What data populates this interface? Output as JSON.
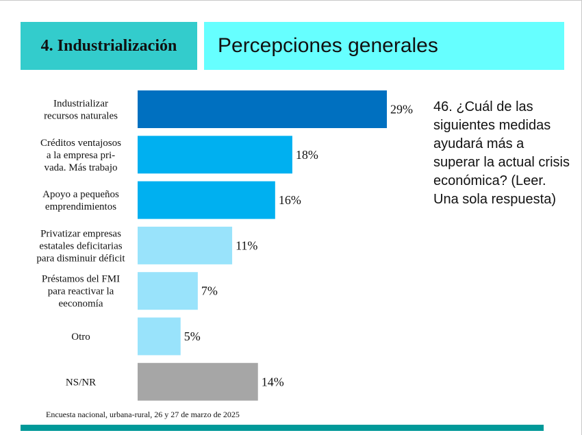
{
  "header": {
    "section": "4. Industrialización",
    "title": "Percepciones generales"
  },
  "question": "46. ¿Cuál de las siguientes medidas ayudará más a superar la actual crisis económica? (Leer. Una sola respuesta)",
  "source": "Encuesta nacional, urbana-rural, 26 y 27 de marzo de 2025",
  "colors": {
    "header_left": "#33cccc",
    "header_right": "#66ffff",
    "footer": "#009999"
  },
  "chart_data": {
    "type": "bar",
    "orientation": "horizontal",
    "categories": [
      [
        "Industrializar",
        "recursos naturales"
      ],
      [
        "Créditos ventajosos",
        "a la empresa pri-",
        "vada. Más trabajo"
      ],
      [
        "Apoyo a pequeños",
        "emprendimientos"
      ],
      [
        "Privatizar empresas",
        "estatales deficitarias",
        "para disminuir déficit"
      ],
      [
        "Préstamos del FMI",
        "para reactivar la",
        "eeconomía"
      ],
      [
        "Otro"
      ],
      [
        "NS/NR"
      ]
    ],
    "values": [
      29,
      18,
      16,
      11,
      7,
      5,
      14
    ],
    "value_labels": [
      "29%",
      "18%",
      "16%",
      "11%",
      "7%",
      "5%",
      "14%"
    ],
    "bar_colors": [
      "#0070c0",
      "#00b0f0",
      "#00b0f0",
      "#99e3fb",
      "#99e3fb",
      "#99e3fb",
      "#a6a6a6"
    ],
    "xlim": [
      0,
      29
    ],
    "grid": false,
    "legend": "none"
  }
}
